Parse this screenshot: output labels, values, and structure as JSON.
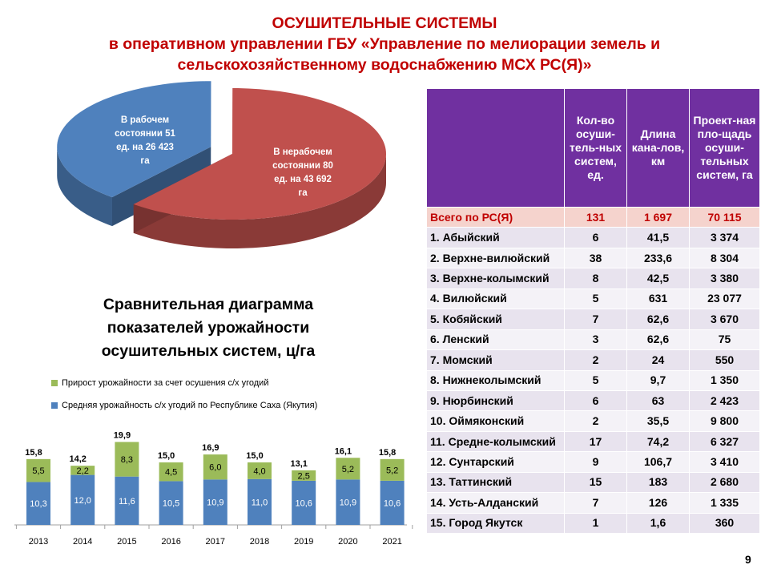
{
  "title": {
    "line1": "ОСУШИТЕЛЬНЫЕ СИСТЕМЫ",
    "line2": "в оперативном управлении ГБУ «Управление по мелиорации земель и",
    "line3": "сельскохозяйственному водоснабжению МСХ РС(Я)»"
  },
  "pie": {
    "slices": [
      {
        "label_lines": [
          "В рабочем",
          "состоянии 51",
          "ед. на 26 423",
          "га"
        ],
        "value": 51,
        "color": "#4f81bd"
      },
      {
        "label_lines": [
          "В нерабочем",
          "состоянии 80",
          "ед. на 43 692",
          "га"
        ],
        "value": 80,
        "color": "#c0504d"
      }
    ]
  },
  "bar_chart": {
    "title_lines": [
      "Сравнительная диаграмма",
      "показателей урожайности",
      "осушительных систем, ц/га"
    ],
    "legend": [
      {
        "label": "Прирост урожайности за счет осушения с/х угодий",
        "color": "#9bbb59"
      },
      {
        "label": "Средняя урожайность с/х угодий по Республике Саха (Якутия)",
        "color": "#4f81bd"
      }
    ]
  },
  "chart_data": {
    "type": "bar",
    "stacked": true,
    "categories": [
      "2013",
      "2014",
      "2015",
      "2016",
      "2017",
      "2018",
      "2019",
      "2020",
      "2021"
    ],
    "series": [
      {
        "name": "Средняя урожайность с/х угодий по Республике Саха (Якутия)",
        "values": [
          10.3,
          12.0,
          11.6,
          10.5,
          10.9,
          11.0,
          10.6,
          10.9,
          10.6
        ],
        "labels": [
          "10,3",
          "12,0",
          "11,6",
          "10,5",
          "10,9",
          "11,0",
          "10,6",
          "10,9",
          "10,6"
        ],
        "color": "#4f81bd"
      },
      {
        "name": "Прирост урожайности за счет осушения с/х угодий",
        "values": [
          5.5,
          2.2,
          8.3,
          4.5,
          6.0,
          4.0,
          2.5,
          5.2,
          5.2
        ],
        "labels": [
          "5,5",
          "2,2",
          "8,3",
          "4,5",
          "6,0",
          "4,0",
          "2,5",
          "5,2",
          "5,2"
        ],
        "color": "#9bbb59"
      }
    ],
    "totals": [
      "15,8",
      "14,2",
      "19,9",
      "15,0",
      "16,9",
      "15,0",
      "13,1",
      "16,1",
      "15,8"
    ],
    "grid": false
  },
  "table": {
    "headers": [
      "",
      "Кол-во осуши-тель-ных систем, ед.",
      "Длина кана-лов, км",
      "Проект-ная пло-щадь осуши-тельных систем, га"
    ],
    "total": [
      "Всего по РС(Я)",
      "131",
      "1 697",
      "70 115"
    ],
    "rows": [
      [
        "1. Абыйский",
        "6",
        "41,5",
        "3 374"
      ],
      [
        "2. Верхне-вилюйский",
        "38",
        "233,6",
        "8 304"
      ],
      [
        "3. Верхне-колымский",
        "8",
        "42,5",
        "3 380"
      ],
      [
        "4. Вилюйский",
        "5",
        "631",
        "23 077"
      ],
      [
        "5. Кобяйский",
        "7",
        "62,6",
        "3 670"
      ],
      [
        "6. Ленский",
        "3",
        "62,6",
        "75"
      ],
      [
        "7. Момский",
        "2",
        "24",
        "550"
      ],
      [
        "8. Нижнеколымский",
        "5",
        "9,7",
        "1 350"
      ],
      [
        "9. Нюрбинский",
        "6",
        "63",
        "2 423"
      ],
      [
        "10. Оймяконский",
        "2",
        "35,5",
        "9 800"
      ],
      [
        "11. Средне-колымский",
        "17",
        "74,2",
        "6 327"
      ],
      [
        "12. Сунтарский",
        "9",
        "106,7",
        "3 410"
      ],
      [
        "13. Таттинский",
        "15",
        "183",
        "2 680"
      ],
      [
        "14. Усть-Алданский",
        "7",
        "126",
        "1 335"
      ],
      [
        "15. Город Якутск",
        "1",
        "1,6",
        "360"
      ]
    ]
  },
  "page_number": "9"
}
